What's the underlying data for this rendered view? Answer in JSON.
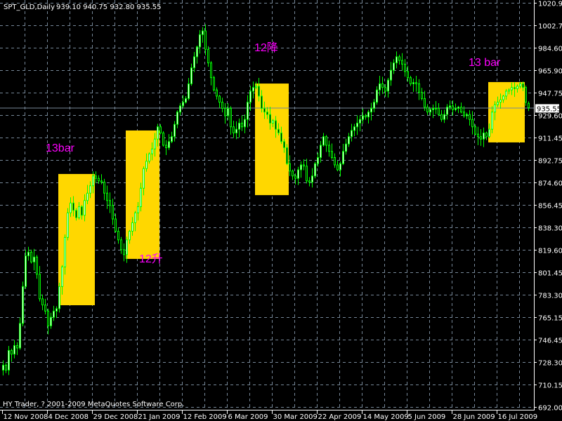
{
  "header": {
    "symbol_period": "SPT_GLD,Daily",
    "ohlc": "939.10 940.75 932.80 935.55"
  },
  "footer": {
    "copyright": "HY Trader, ? 2001-2009 MetaQuotes Software Corp."
  },
  "colors": {
    "background": "#000000",
    "candle": "#00ff00",
    "grid": "#778899",
    "box": "#ffd700",
    "annotation": "#ff00ff",
    "axis": "#ffffff"
  },
  "chart_data": {
    "type": "candlestick",
    "grid": true,
    "ylim": [
      692.0,
      1020.9
    ],
    "y_ticks": [
      "1020.90",
      "1002.75",
      "984.60",
      "965.90",
      "947.75",
      "929.60",
      "911.45",
      "892.75",
      "874.60",
      "856.45",
      "838.30",
      "819.60",
      "801.45",
      "783.30",
      "765.15",
      "746.45",
      "728.30",
      "710.15",
      "692.00"
    ],
    "x_ticks": [
      "12 Nov 2008",
      "4 Dec 2008",
      "29 Dec 2008",
      "21 Jan 2009",
      "12 Feb 2009",
      "6 Mar 2009",
      "30 Mar 2009",
      "22 Apr 2009",
      "14 May 2009",
      "5 Jun 2009",
      "28 Jun 2009",
      "16 Jul 2009"
    ],
    "bars_per_x_tick": 16,
    "current_price": "935.55",
    "last_bar": {
      "open": 939.1,
      "high": 940.75,
      "low": 932.8,
      "close": 935.55
    },
    "close": [
      726,
      722,
      738,
      735,
      742,
      740,
      760,
      790,
      815,
      818,
      810,
      814,
      800,
      780,
      775,
      770,
      758,
      765,
      770,
      772,
      790,
      806,
      830,
      850,
      858,
      852,
      846,
      855,
      848,
      860,
      866,
      872,
      880,
      878,
      876,
      875,
      866,
      860,
      856,
      845,
      835,
      828,
      820,
      816,
      828,
      835,
      842,
      850,
      855,
      870,
      886,
      892,
      898,
      902,
      910,
      920,
      915,
      905,
      903,
      908,
      912,
      922,
      932,
      937,
      940,
      943,
      955,
      968,
      977,
      985,
      995,
      998,
      983,
      972,
      960,
      950,
      945,
      940,
      935,
      929,
      935,
      920,
      915,
      918,
      923,
      920,
      926,
      940,
      949,
      952,
      953,
      945,
      935,
      932,
      930,
      923,
      925,
      918,
      915,
      908,
      903,
      890,
      884,
      880,
      878,
      885,
      889,
      888,
      876,
      875,
      880,
      890,
      895,
      905,
      912,
      905,
      900,
      895,
      889,
      885,
      890,
      900,
      906,
      912,
      917,
      920,
      923,
      926,
      929,
      928,
      932,
      935,
      940,
      950,
      955,
      952,
      949,
      958,
      966,
      972,
      977,
      974,
      971,
      965,
      960,
      955,
      956,
      955,
      948,
      943,
      936,
      932,
      934,
      935,
      935,
      930,
      926,
      930,
      936,
      937,
      934,
      935,
      936,
      932,
      929,
      930,
      926,
      920,
      914,
      912,
      910,
      915,
      912,
      918,
      932,
      938,
      940,
      942,
      945,
      949,
      950,
      952,
      951,
      953,
      955,
      952,
      940,
      935.55
    ],
    "annotations": [
      {
        "label": "13bar",
        "from_bar": 20,
        "to_bar": 32,
        "price_top": 881.6,
        "price_bottom": 774.8
      },
      {
        "label": "12升",
        "from_bar": 44,
        "to_bar": 55,
        "price_top": 917.0,
        "price_bottom": 812.5
      },
      {
        "label": "12降",
        "from_bar": 90,
        "to_bar": 101,
        "price_top": 955.2,
        "price_bottom": 864.4
      },
      {
        "label": "13 bar",
        "from_bar": 173,
        "to_bar": 185,
        "price_top": 956.4,
        "price_bottom": 907.3
      }
    ]
  }
}
